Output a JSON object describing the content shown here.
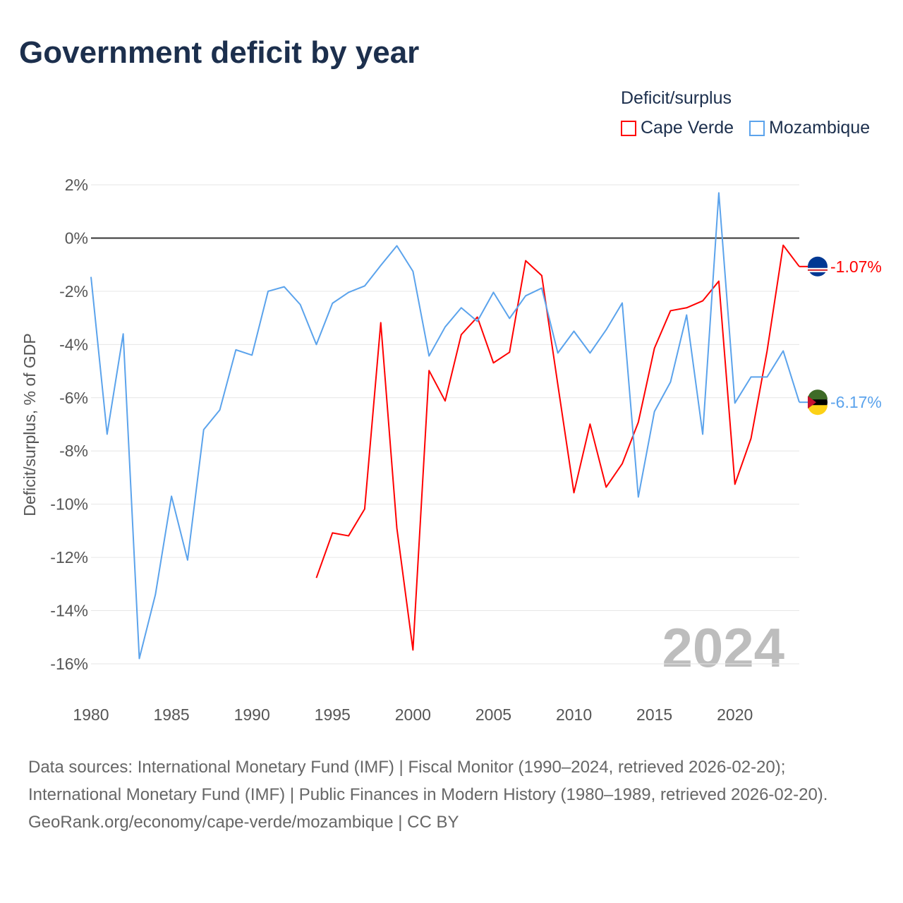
{
  "title": "Government deficit by year",
  "legend": {
    "title": "Deficit/surplus",
    "items": [
      "Cape Verde",
      "Mozambique"
    ]
  },
  "colors": {
    "cape_verde": "#ff0000",
    "mozambique": "#5ba3ec"
  },
  "chart_data": {
    "type": "line",
    "title": "Government deficit by year",
    "xlabel": "",
    "ylabel": "Deficit/surplus, % of GDP",
    "xlim": [
      1980,
      2024
    ],
    "ylim": [
      -16,
      2
    ],
    "x_ticks": [
      "1980",
      "1985",
      "1990",
      "1995",
      "2000",
      "2005",
      "2010",
      "2015",
      "2020"
    ],
    "y_ticks": [
      "2%",
      "0%",
      "-2%",
      "-4%",
      "-6%",
      "-8%",
      "-10%",
      "-12%",
      "-14%",
      "-16%"
    ],
    "year_watermark": "2024",
    "series": [
      {
        "name": "Cape Verde",
        "end_label": "-1.07%",
        "x": [
          1994,
          1995,
          1996,
          1997,
          1998,
          1999,
          2000,
          2001,
          2002,
          2003,
          2004,
          2005,
          2006,
          2007,
          2008,
          2009,
          2010,
          2011,
          2012,
          2013,
          2014,
          2015,
          2016,
          2017,
          2018,
          2019,
          2020,
          2021,
          2022,
          2023,
          2024
        ],
        "values": [
          -12.77,
          -11.08,
          -11.19,
          -10.18,
          -3.18,
          -10.9,
          -15.48,
          -4.98,
          -6.12,
          -3.63,
          -2.97,
          -4.69,
          -4.29,
          -0.85,
          -1.41,
          -5.51,
          -9.57,
          -6.99,
          -9.36,
          -8.48,
          -6.92,
          -4.14,
          -2.73,
          -2.62,
          -2.36,
          -1.62,
          -9.25,
          -7.53,
          -4.24,
          -0.27,
          -1.07
        ]
      },
      {
        "name": "Mozambique",
        "end_label": "-6.17%",
        "x": [
          1980,
          1981,
          1982,
          1983,
          1984,
          1985,
          1986,
          1987,
          1988,
          1989,
          1990,
          1991,
          1992,
          1993,
          1994,
          1995,
          1996,
          1997,
          1998,
          1999,
          2000,
          2001,
          2002,
          2003,
          2004,
          2005,
          2006,
          2007,
          2008,
          2009,
          2010,
          2011,
          2012,
          2013,
          2014,
          2015,
          2016,
          2017,
          2018,
          2019,
          2020,
          2021,
          2022,
          2023,
          2024
        ],
        "values": [
          -1.46,
          -7.37,
          -3.6,
          -15.8,
          -13.4,
          -9.7,
          -12.1,
          -7.2,
          -6.46,
          -4.2,
          -4.4,
          -2.0,
          -1.83,
          -2.5,
          -4.0,
          -2.45,
          -2.04,
          -1.8,
          -1.03,
          -0.29,
          -1.25,
          -4.43,
          -3.34,
          -2.62,
          -3.13,
          -2.04,
          -3.02,
          -2.17,
          -1.88,
          -4.32,
          -3.5,
          -4.32,
          -3.45,
          -2.44,
          -9.73,
          -6.52,
          -5.41,
          -2.89,
          -7.37,
          1.7,
          -6.2,
          -5.22,
          -5.22,
          -4.24,
          -6.17
        ]
      }
    ]
  },
  "footer": {
    "sources": "Data sources: International Monetary Fund (IMF) | Fiscal Monitor (1990–2024, retrieved 2026-02-20); International Monetary Fund (IMF) | Public Finances in Modern History (1980–1989, retrieved 2026-02-20).",
    "credit": "GeoRank.org/economy/cape-verde/mozambique | CC BY"
  }
}
